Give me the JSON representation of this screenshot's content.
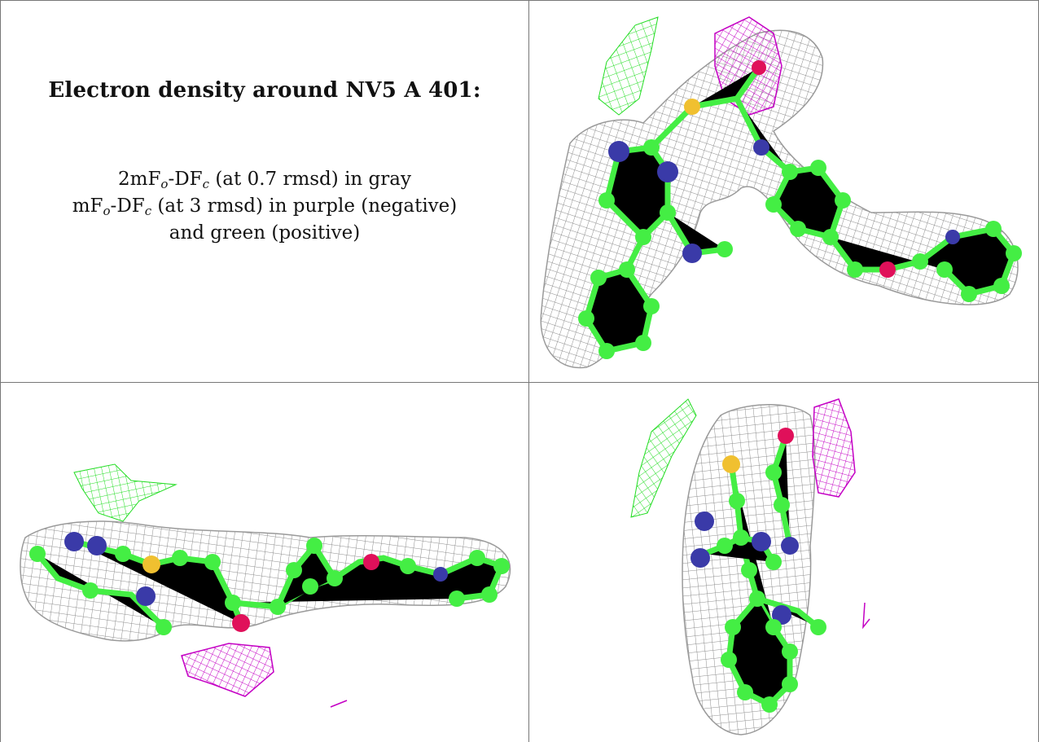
{
  "caption": {
    "title": "Electron density around NV5 A 401:",
    "line1": {
      "prefix": "2mF",
      "sub1": "o",
      "middle": "-DF",
      "sub2": "c",
      "suffix": " (at 0.7 rmsd) in gray"
    },
    "line2": {
      "prefix": "mF",
      "sub1": "o",
      "middle": "-DF",
      "sub2": "c",
      "suffix": " (at 3 rmsd) in purple (negative)"
    },
    "line3": "and green (positive)"
  },
  "colors": {
    "mesh_gray": "#9a9a9a",
    "negative_purple": "#c400c4",
    "positive_green": "#22dd22",
    "carbon_green": "#44ee44",
    "nitrogen_blue": "#3a3aa8",
    "oxygen_red": "#e0105a",
    "sulfur_yellow": "#f0c030",
    "border": "#777777"
  },
  "views": [
    {
      "name": "top-right-view"
    },
    {
      "name": "bottom-left-view"
    },
    {
      "name": "bottom-right-view"
    }
  ]
}
